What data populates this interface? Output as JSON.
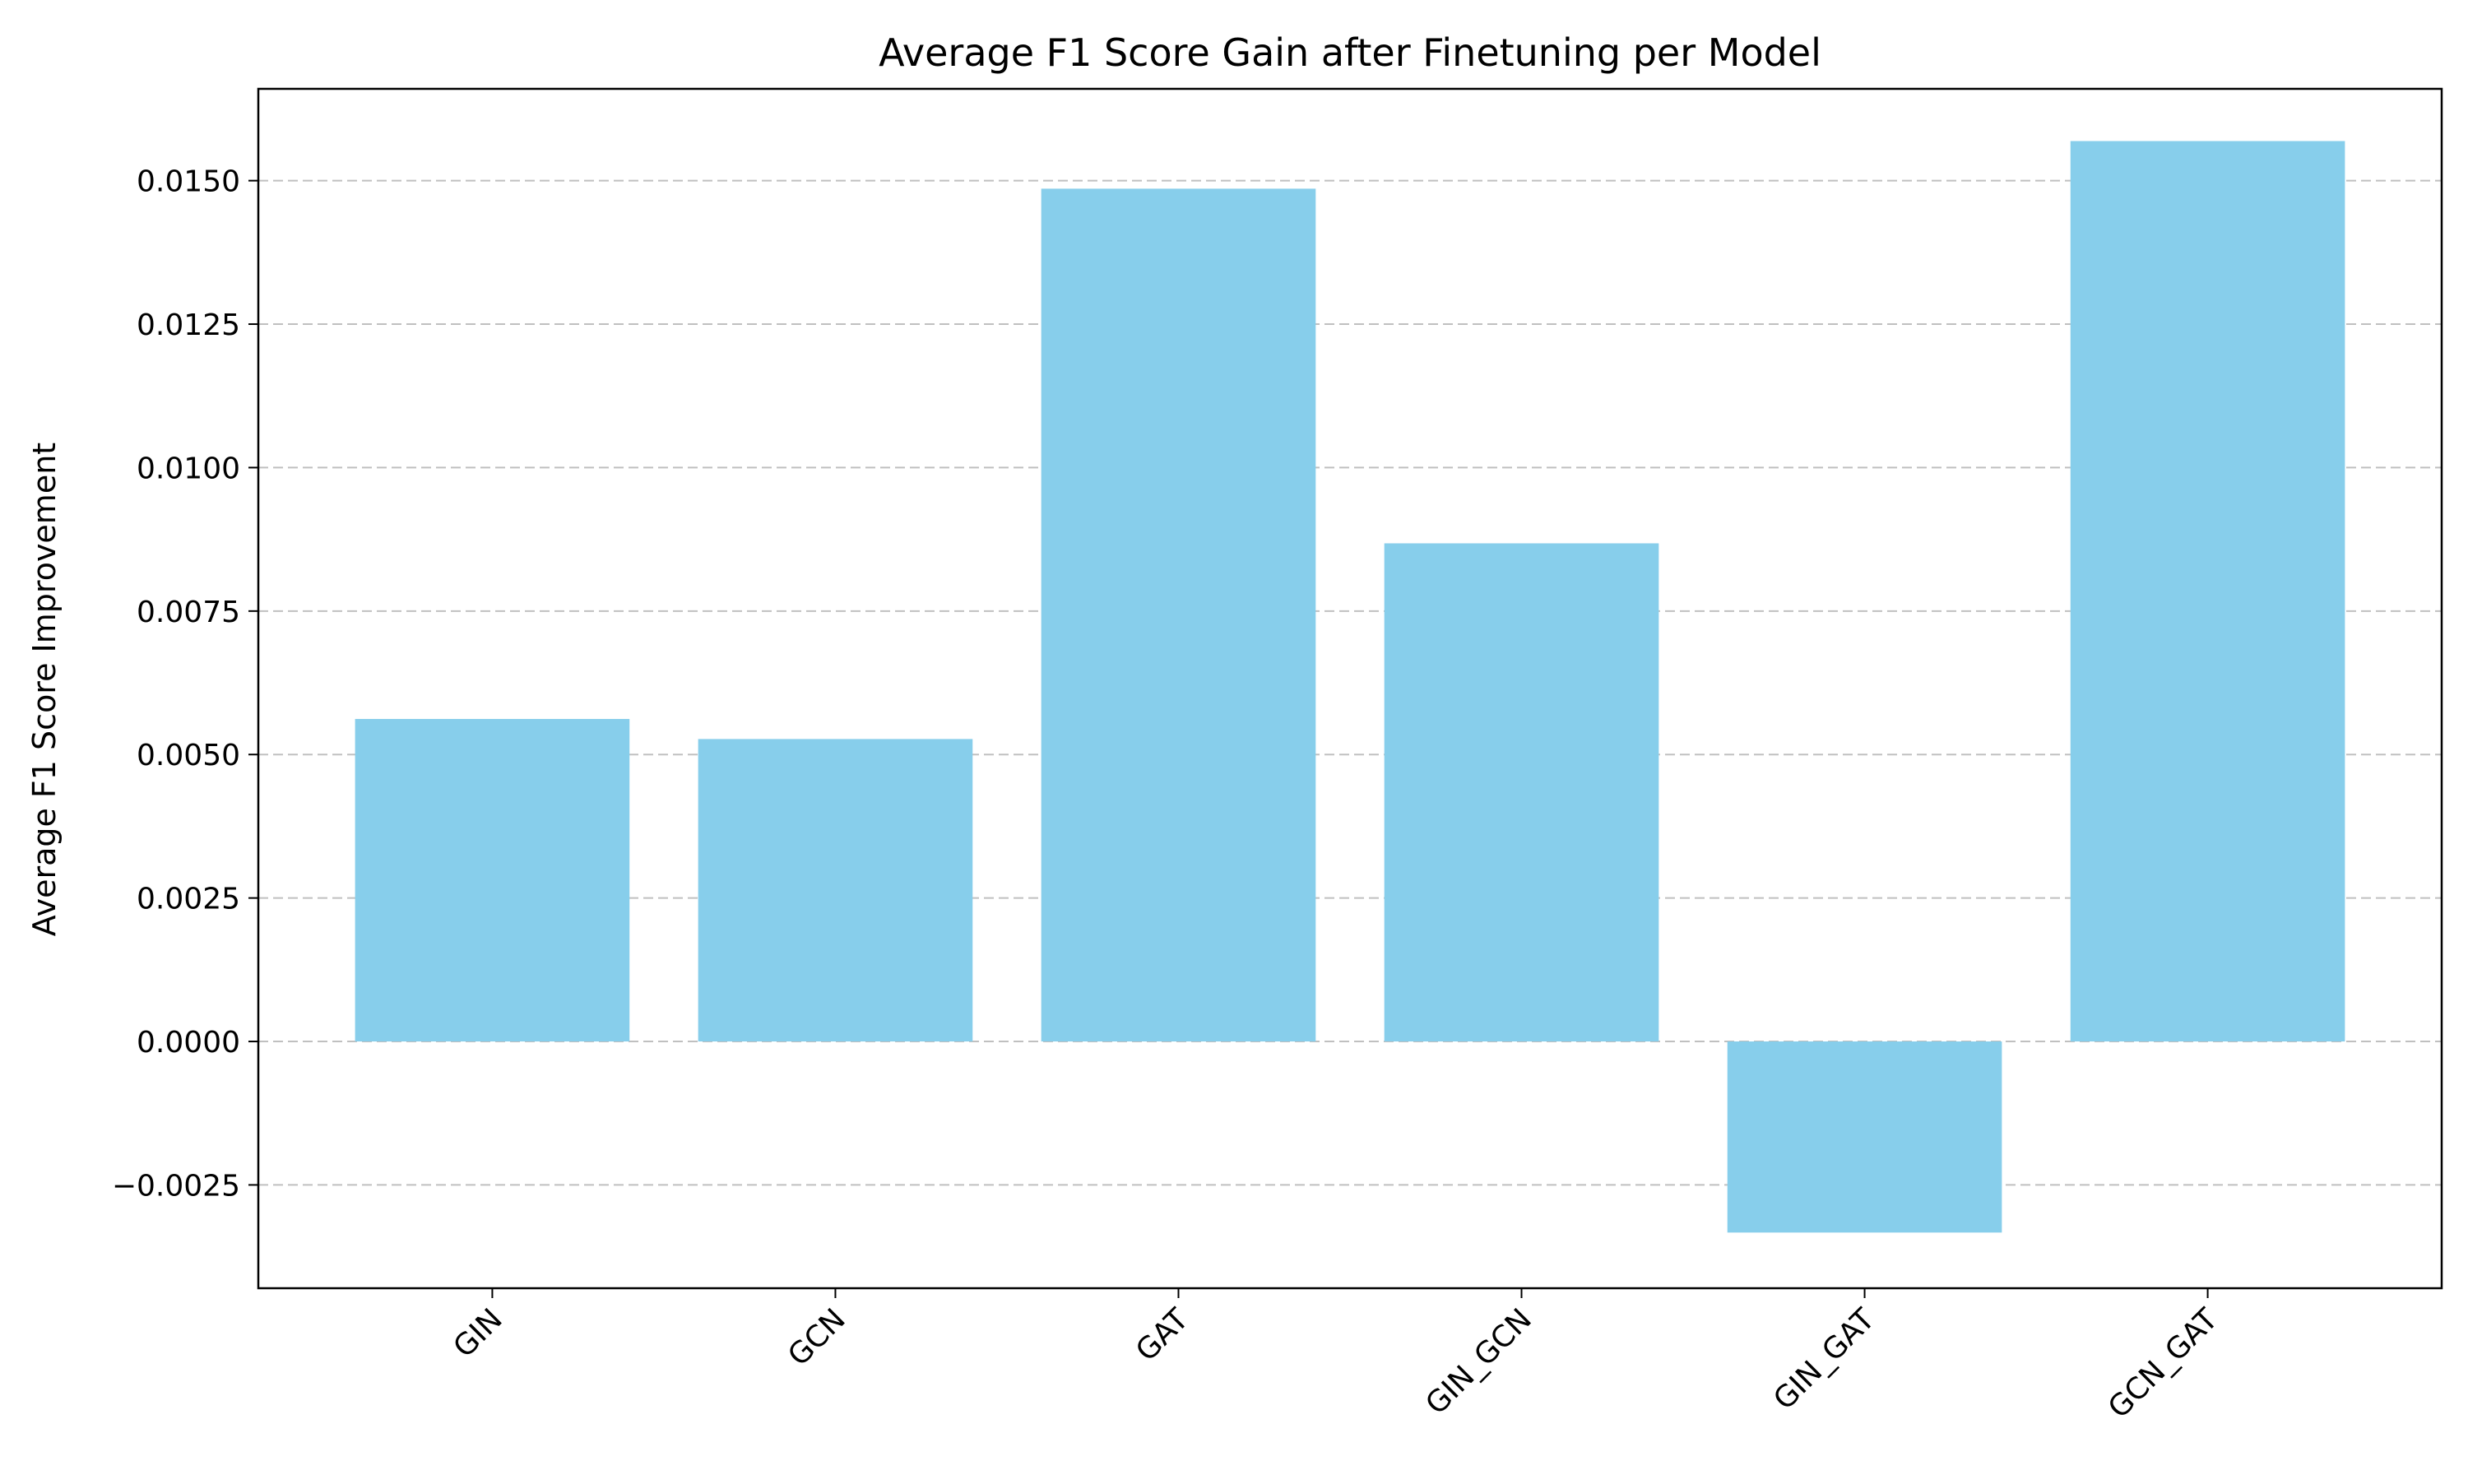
{
  "chart_data": {
    "type": "bar",
    "title": "Average F1 Score Gain after Finetuning per Model",
    "xlabel": "",
    "ylabel": "Average F1 Score Improvement",
    "categories": [
      "GIN",
      "GCN",
      "GAT",
      "GIN_GCN",
      "GIN_GAT",
      "GCN_GAT"
    ],
    "values": [
      0.00562,
      0.00527,
      0.01486,
      0.00868,
      -0.00333,
      0.01569
    ],
    "ylim": [
      -0.0043,
      0.0166
    ],
    "yticks": [
      -0.0025,
      0.0,
      0.0025,
      0.005,
      0.0075,
      0.01,
      0.0125,
      0.015
    ],
    "ytick_labels": [
      "−0.0025",
      "0.0000",
      "0.0025",
      "0.0050",
      "0.0075",
      "0.0100",
      "0.0125",
      "0.0150"
    ],
    "grid": "y-dashed",
    "legend": "none",
    "bar_color": "#87CEEB",
    "grid_color": "#c0c0c0"
  }
}
